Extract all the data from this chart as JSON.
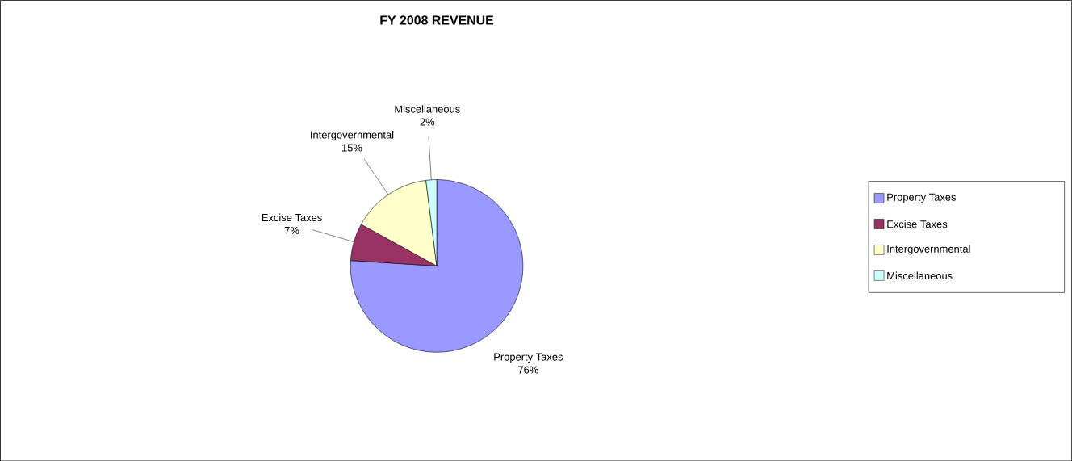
{
  "chart_data": {
    "type": "pie",
    "title": "FY 2008 REVENUE",
    "categories": [
      "Property Taxes",
      "Excise Taxes",
      "Intergovernmental",
      "Miscellaneous"
    ],
    "values": [
      76,
      7,
      15,
      2
    ],
    "value_labels": [
      "76%",
      "7%",
      "15%",
      "2%"
    ],
    "colors": [
      "#9999ff",
      "#993366",
      "#ffffcc",
      "#ccffff"
    ],
    "legend": "right"
  }
}
